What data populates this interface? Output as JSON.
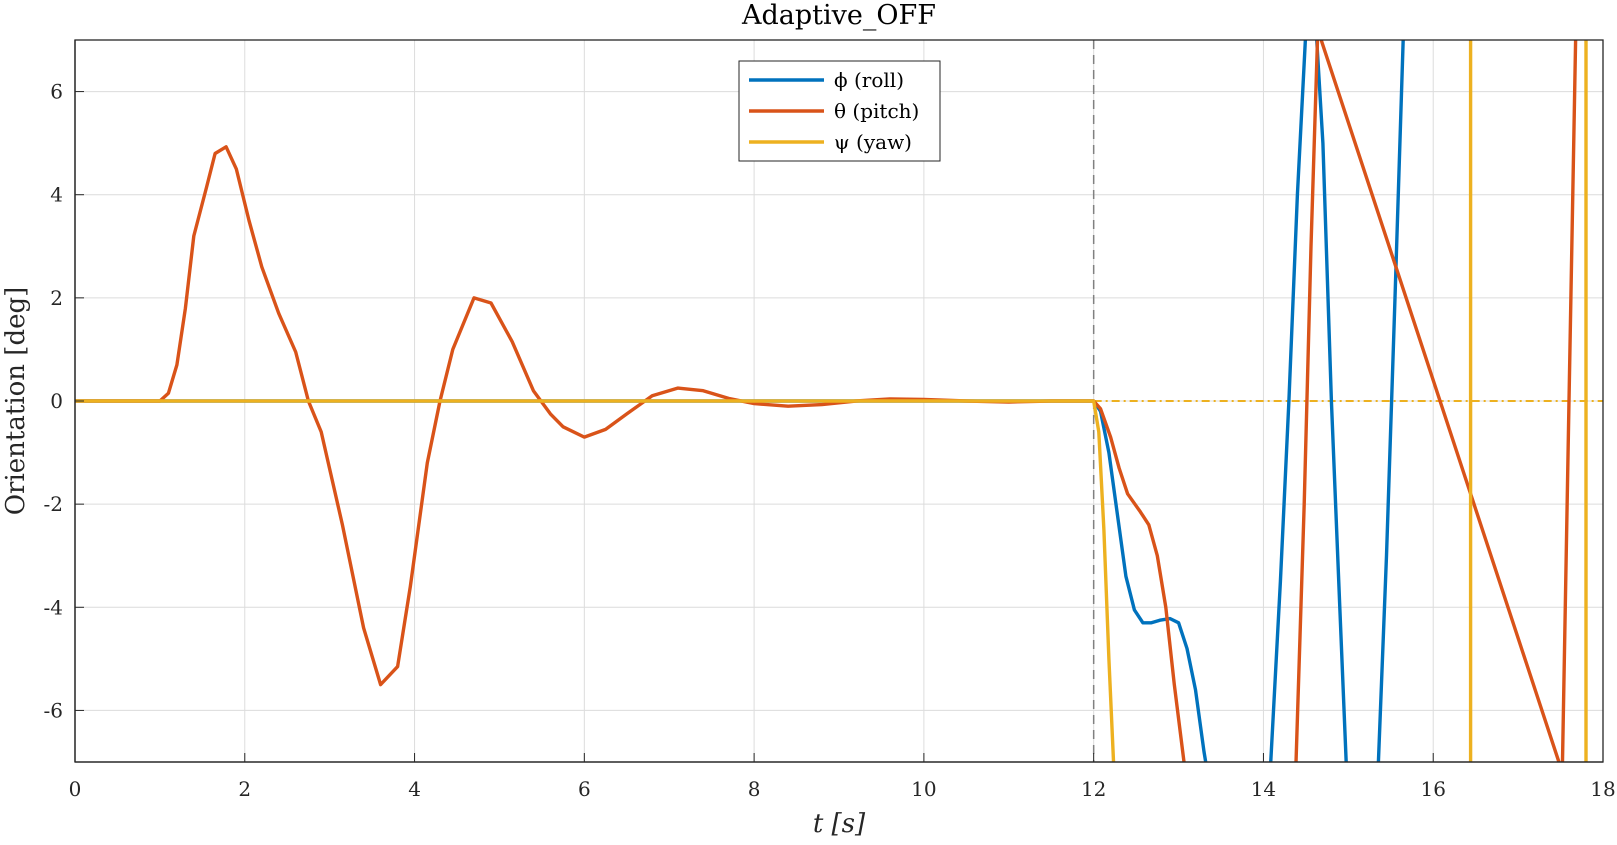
{
  "chart_data": {
    "type": "line",
    "title": "Adaptive_OFF",
    "xlabel": "t [s]",
    "ylabel": "Orientation [deg]",
    "xlim": [
      0,
      18
    ],
    "ylim": [
      -7,
      7
    ],
    "xticks": [
      0,
      2,
      4,
      6,
      8,
      10,
      12,
      14,
      16,
      18
    ],
    "yticks": [
      -6,
      -4,
      -2,
      0,
      2,
      4,
      6
    ],
    "xtick_labels": [
      "0",
      "2",
      "4",
      "6",
      "8",
      "10",
      "12",
      "14",
      "16",
      "18"
    ],
    "ytick_labels": [
      "-6",
      "-4",
      "-2",
      "0",
      "2",
      "4",
      "6"
    ],
    "grid": true,
    "legend_position": "top-center",
    "event_line_x": 12,
    "reference_line_y": 0,
    "series": [
      {
        "name": "ϕ (roll)",
        "color": "#0072BD",
        "points": [
          [
            0,
            0
          ],
          [
            12,
            0
          ],
          [
            12.08,
            -0.2
          ],
          [
            12.18,
            -1.0
          ],
          [
            12.28,
            -2.2
          ],
          [
            12.38,
            -3.4
          ],
          [
            12.48,
            -4.05
          ],
          [
            12.58,
            -4.3
          ],
          [
            12.68,
            -4.3
          ],
          [
            12.78,
            -4.25
          ],
          [
            12.9,
            -4.22
          ],
          [
            13.0,
            -4.3
          ],
          [
            13.1,
            -4.8
          ],
          [
            13.2,
            -5.6
          ],
          [
            13.3,
            -6.8
          ],
          [
            13.34,
            -7.2
          ],
          [
            14.08,
            -7.2
          ],
          [
            14.2,
            -3.5
          ],
          [
            14.3,
            0
          ],
          [
            14.4,
            4.0
          ],
          [
            14.5,
            7.2
          ],
          [
            14.62,
            7.2
          ],
          [
            14.7,
            5.0
          ],
          [
            14.8,
            0
          ],
          [
            14.9,
            -4.0
          ],
          [
            14.98,
            -7.2
          ],
          [
            15.35,
            -7.2
          ],
          [
            15.45,
            -3.0
          ],
          [
            15.55,
            2.0
          ],
          [
            15.65,
            7.2
          ]
        ]
      },
      {
        "name": "θ (pitch)",
        "color": "#D95319",
        "points": [
          [
            0,
            0
          ],
          [
            1.0,
            0
          ],
          [
            1.1,
            0.15
          ],
          [
            1.2,
            0.7
          ],
          [
            1.3,
            1.8
          ],
          [
            1.4,
            3.2
          ],
          [
            1.55,
            4.15
          ],
          [
            1.65,
            4.8
          ],
          [
            1.78,
            4.93
          ],
          [
            1.9,
            4.5
          ],
          [
            2.05,
            3.5
          ],
          [
            2.2,
            2.6
          ],
          [
            2.4,
            1.7
          ],
          [
            2.6,
            0.95
          ],
          [
            2.75,
            0
          ],
          [
            2.9,
            -0.6
          ],
          [
            3.15,
            -2.4
          ],
          [
            3.4,
            -4.4
          ],
          [
            3.6,
            -5.5
          ],
          [
            3.8,
            -5.15
          ],
          [
            3.95,
            -3.6
          ],
          [
            4.15,
            -1.2
          ],
          [
            4.3,
            0
          ],
          [
            4.45,
            1.0
          ],
          [
            4.7,
            2.0
          ],
          [
            4.9,
            1.9
          ],
          [
            5.15,
            1.15
          ],
          [
            5.4,
            0.2
          ],
          [
            5.6,
            -0.25
          ],
          [
            5.75,
            -0.5
          ],
          [
            6.0,
            -0.7
          ],
          [
            6.25,
            -0.55
          ],
          [
            6.5,
            -0.25
          ],
          [
            6.8,
            0.1
          ],
          [
            7.1,
            0.25
          ],
          [
            7.4,
            0.2
          ],
          [
            7.7,
            0.05
          ],
          [
            8.0,
            -0.05
          ],
          [
            8.4,
            -0.1
          ],
          [
            8.8,
            -0.07
          ],
          [
            9.2,
            0.0
          ],
          [
            9.6,
            0.04
          ],
          [
            10.0,
            0.03
          ],
          [
            10.5,
            0.0
          ],
          [
            11.0,
            -0.02
          ],
          [
            11.5,
            0.0
          ],
          [
            12.0,
            0.0
          ],
          [
            12.08,
            -0.15
          ],
          [
            12.2,
            -0.7
          ],
          [
            12.3,
            -1.3
          ],
          [
            12.4,
            -1.8
          ],
          [
            12.55,
            -2.15
          ],
          [
            12.65,
            -2.4
          ],
          [
            12.75,
            -3.0
          ],
          [
            12.85,
            -4.0
          ],
          [
            12.95,
            -5.5
          ],
          [
            13.08,
            -7.2
          ],
          [
            14.38,
            -7.2
          ],
          [
            14.48,
            -2.0
          ],
          [
            14.56,
            3.0
          ],
          [
            14.64,
            7.2
          ],
          [
            17.52,
            -7.2
          ],
          [
            17.6,
            0
          ],
          [
            17.68,
            7.2
          ]
        ]
      },
      {
        "name": "ψ (yaw)",
        "color": "#EDB120",
        "points": [
          [
            0,
            0
          ],
          [
            12.0,
            0
          ],
          [
            12.06,
            -0.6
          ],
          [
            12.12,
            -2.5
          ],
          [
            12.18,
            -5.0
          ],
          [
            12.24,
            -7.2
          ],
          [
            16.44,
            -7.2
          ],
          [
            16.44,
            7.2
          ],
          [
            17.8,
            7.2
          ],
          [
            17.8,
            -7.2
          ]
        ]
      }
    ]
  }
}
